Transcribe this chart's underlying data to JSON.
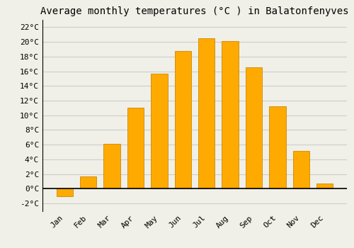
{
  "title": "Average monthly temperatures (°C ) in Balatonfenyves",
  "months": [
    "Jan",
    "Feb",
    "Mar",
    "Apr",
    "May",
    "Jun",
    "Jul",
    "Aug",
    "Sep",
    "Oct",
    "Nov",
    "Dec"
  ],
  "temperatures": [
    -1.0,
    1.7,
    6.1,
    11.0,
    15.7,
    18.8,
    20.5,
    20.1,
    16.5,
    11.2,
    5.2,
    0.7
  ],
  "bar_color": "#FFAA00",
  "bar_edge_color": "#CC8800",
  "background_color": "#F0F0E8",
  "ylim": [
    -3,
    23
  ],
  "yticks": [
    -2,
    0,
    2,
    4,
    6,
    8,
    10,
    12,
    14,
    16,
    18,
    20,
    22
  ],
  "grid_color": "#CCCCCC",
  "title_fontsize": 10,
  "tick_fontsize": 8,
  "font_family": "monospace"
}
